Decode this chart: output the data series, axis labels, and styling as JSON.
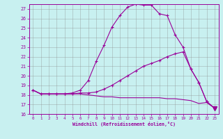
{
  "title": "",
  "xlabel": "Windchill (Refroidissement éolien,°C)",
  "bg_color": "#c8f0f0",
  "grid_color": "#888888",
  "line_color": "#990099",
  "xlim": [
    -0.5,
    23.5
  ],
  "ylim": [
    16,
    27.5
  ],
  "yticks": [
    16,
    17,
    18,
    19,
    20,
    21,
    22,
    23,
    24,
    25,
    26,
    27
  ],
  "xticks": [
    0,
    1,
    2,
    3,
    4,
    5,
    6,
    7,
    8,
    9,
    10,
    11,
    12,
    13,
    14,
    15,
    16,
    17,
    18,
    19,
    20,
    21,
    22,
    23
  ],
  "hours": [
    0,
    1,
    2,
    3,
    4,
    5,
    6,
    7,
    8,
    9,
    10,
    11,
    12,
    13,
    14,
    15,
    16,
    17,
    18,
    19,
    20,
    21,
    22,
    23
  ],
  "curve1": [
    18.5,
    18.1,
    18.1,
    18.1,
    18.1,
    18.2,
    18.5,
    19.5,
    21.5,
    23.2,
    25.1,
    26.3,
    27.2,
    27.5,
    27.4,
    27.4,
    26.5,
    26.3,
    24.3,
    23.0,
    20.7,
    19.3,
    17.3,
    16.6
  ],
  "curve2": [
    18.5,
    18.1,
    18.1,
    18.1,
    18.1,
    18.1,
    18.2,
    18.2,
    18.3,
    18.6,
    19.0,
    19.5,
    20.0,
    20.5,
    21.0,
    21.3,
    21.6,
    22.0,
    22.3,
    22.5,
    20.7,
    19.3,
    17.3,
    16.6
  ],
  "curve3": [
    18.5,
    18.1,
    18.1,
    18.1,
    18.1,
    18.1,
    18.1,
    18.0,
    17.9,
    17.8,
    17.8,
    17.7,
    17.7,
    17.7,
    17.7,
    17.7,
    17.7,
    17.6,
    17.6,
    17.5,
    17.4,
    17.1,
    17.2,
    16.6
  ]
}
